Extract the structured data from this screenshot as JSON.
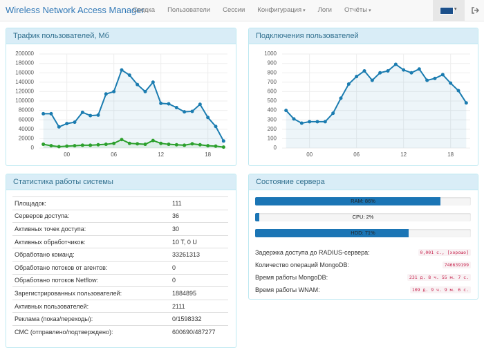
{
  "nav": {
    "brand": "Wireless Network Access Manager",
    "items": [
      "Сводка",
      "Пользователи",
      "Сессии",
      "Конфигурация",
      "Логи",
      "Отчёты"
    ]
  },
  "chart_data": [
    {
      "type": "line",
      "title": "Трафик пользователей, Мб",
      "x": [
        -3,
        -2,
        -1,
        0,
        1,
        2,
        3,
        4,
        5,
        6,
        7,
        8,
        9,
        10,
        11,
        12,
        13,
        14,
        15,
        16,
        17,
        18,
        19,
        20
      ],
      "series": [
        {
          "color": "#1b7cb0",
          "values": [
            73000,
            73000,
            45000,
            52000,
            55000,
            76000,
            69000,
            70000,
            115000,
            120000,
            166000,
            155000,
            135000,
            120000,
            140000,
            95000,
            94000,
            86000,
            77000,
            78000,
            93000,
            65000,
            46000,
            15000
          ]
        },
        {
          "color": "#2ca02c",
          "values": [
            8000,
            5000,
            3000,
            4000,
            5000,
            6000,
            6000,
            7000,
            8000,
            10000,
            18000,
            10000,
            9000,
            8000,
            16000,
            10000,
            8000,
            7000,
            6000,
            9000,
            7000,
            5000,
            4000,
            2000
          ]
        }
      ],
      "xlim": [
        -3.5,
        20.5
      ],
      "xticks": [
        {
          "value": 0,
          "label": "00"
        },
        {
          "value": 6,
          "label": "06"
        },
        {
          "value": 12,
          "label": "12"
        },
        {
          "value": 18,
          "label": "18"
        }
      ],
      "ylim": [
        0,
        200000
      ],
      "yticks": [
        0,
        20000,
        40000,
        60000,
        80000,
        100000,
        120000,
        140000,
        160000,
        180000,
        200000
      ],
      "grid": true
    },
    {
      "type": "line",
      "title": "Подключения пользователей",
      "x": [
        -3,
        -2,
        -1,
        0,
        1,
        2,
        3,
        4,
        5,
        6,
        7,
        8,
        9,
        10,
        11,
        12,
        13,
        14,
        15,
        16,
        17,
        18,
        19,
        20
      ],
      "series": [
        {
          "color": "#1b7cb0",
          "values": [
            400,
            310,
            265,
            280,
            280,
            280,
            370,
            530,
            680,
            760,
            820,
            720,
            800,
            820,
            890,
            830,
            800,
            840,
            720,
            740,
            780,
            690,
            610,
            480
          ]
        }
      ],
      "xlim": [
        -3.5,
        20.5
      ],
      "xticks": [
        {
          "value": 0,
          "label": "00"
        },
        {
          "value": 6,
          "label": "06"
        },
        {
          "value": 12,
          "label": "12"
        },
        {
          "value": 18,
          "label": "18"
        }
      ],
      "ylim": [
        0,
        1000
      ],
      "yticks": [
        0,
        100,
        200,
        300,
        400,
        500,
        600,
        700,
        800,
        900,
        1000
      ],
      "grid": true
    }
  ],
  "stats": {
    "title": "Статистика работы системы",
    "rows": [
      [
        "Площадок:",
        "111"
      ],
      [
        "Серверов доступа:",
        "36"
      ],
      [
        "Активных точек доступа:",
        "30"
      ],
      [
        "Активных обработчиков:",
        "10 T, 0 U"
      ],
      [
        "Обработано команд:",
        "33261313"
      ],
      [
        "Обработано потоков от агентов:",
        "0"
      ],
      [
        "Обработано потоков Netflow:",
        "0"
      ],
      [
        "Зарегистрированных пользователей:",
        "1884895"
      ],
      [
        "Активных пользователей:",
        "2111"
      ],
      [
        "Реклама (показ/переходы):",
        "0/1598332"
      ],
      [
        "СМС (отправлено/подтверждено):",
        "600690/487277"
      ]
    ]
  },
  "server": {
    "title": "Состояние сервера",
    "bars": [
      {
        "label": "RAM: 86%",
        "value": 86
      },
      {
        "label": "CPU: 2%",
        "value": 2
      },
      {
        "label": "HDD: 71%",
        "value": 71
      }
    ],
    "rows": [
      [
        "Задержка доступа до RADIUS-сервера:",
        "0,001 с., [хорошо]"
      ],
      [
        "Количество операций MongoDB:",
        "746639199"
      ],
      [
        "Время работы MongoDB:",
        "231 д. 8 ч. 55 м. 7 с."
      ],
      [
        "Время работы WNAM:",
        "109 д. 9 ч. 9 м. 6 с."
      ]
    ]
  }
}
